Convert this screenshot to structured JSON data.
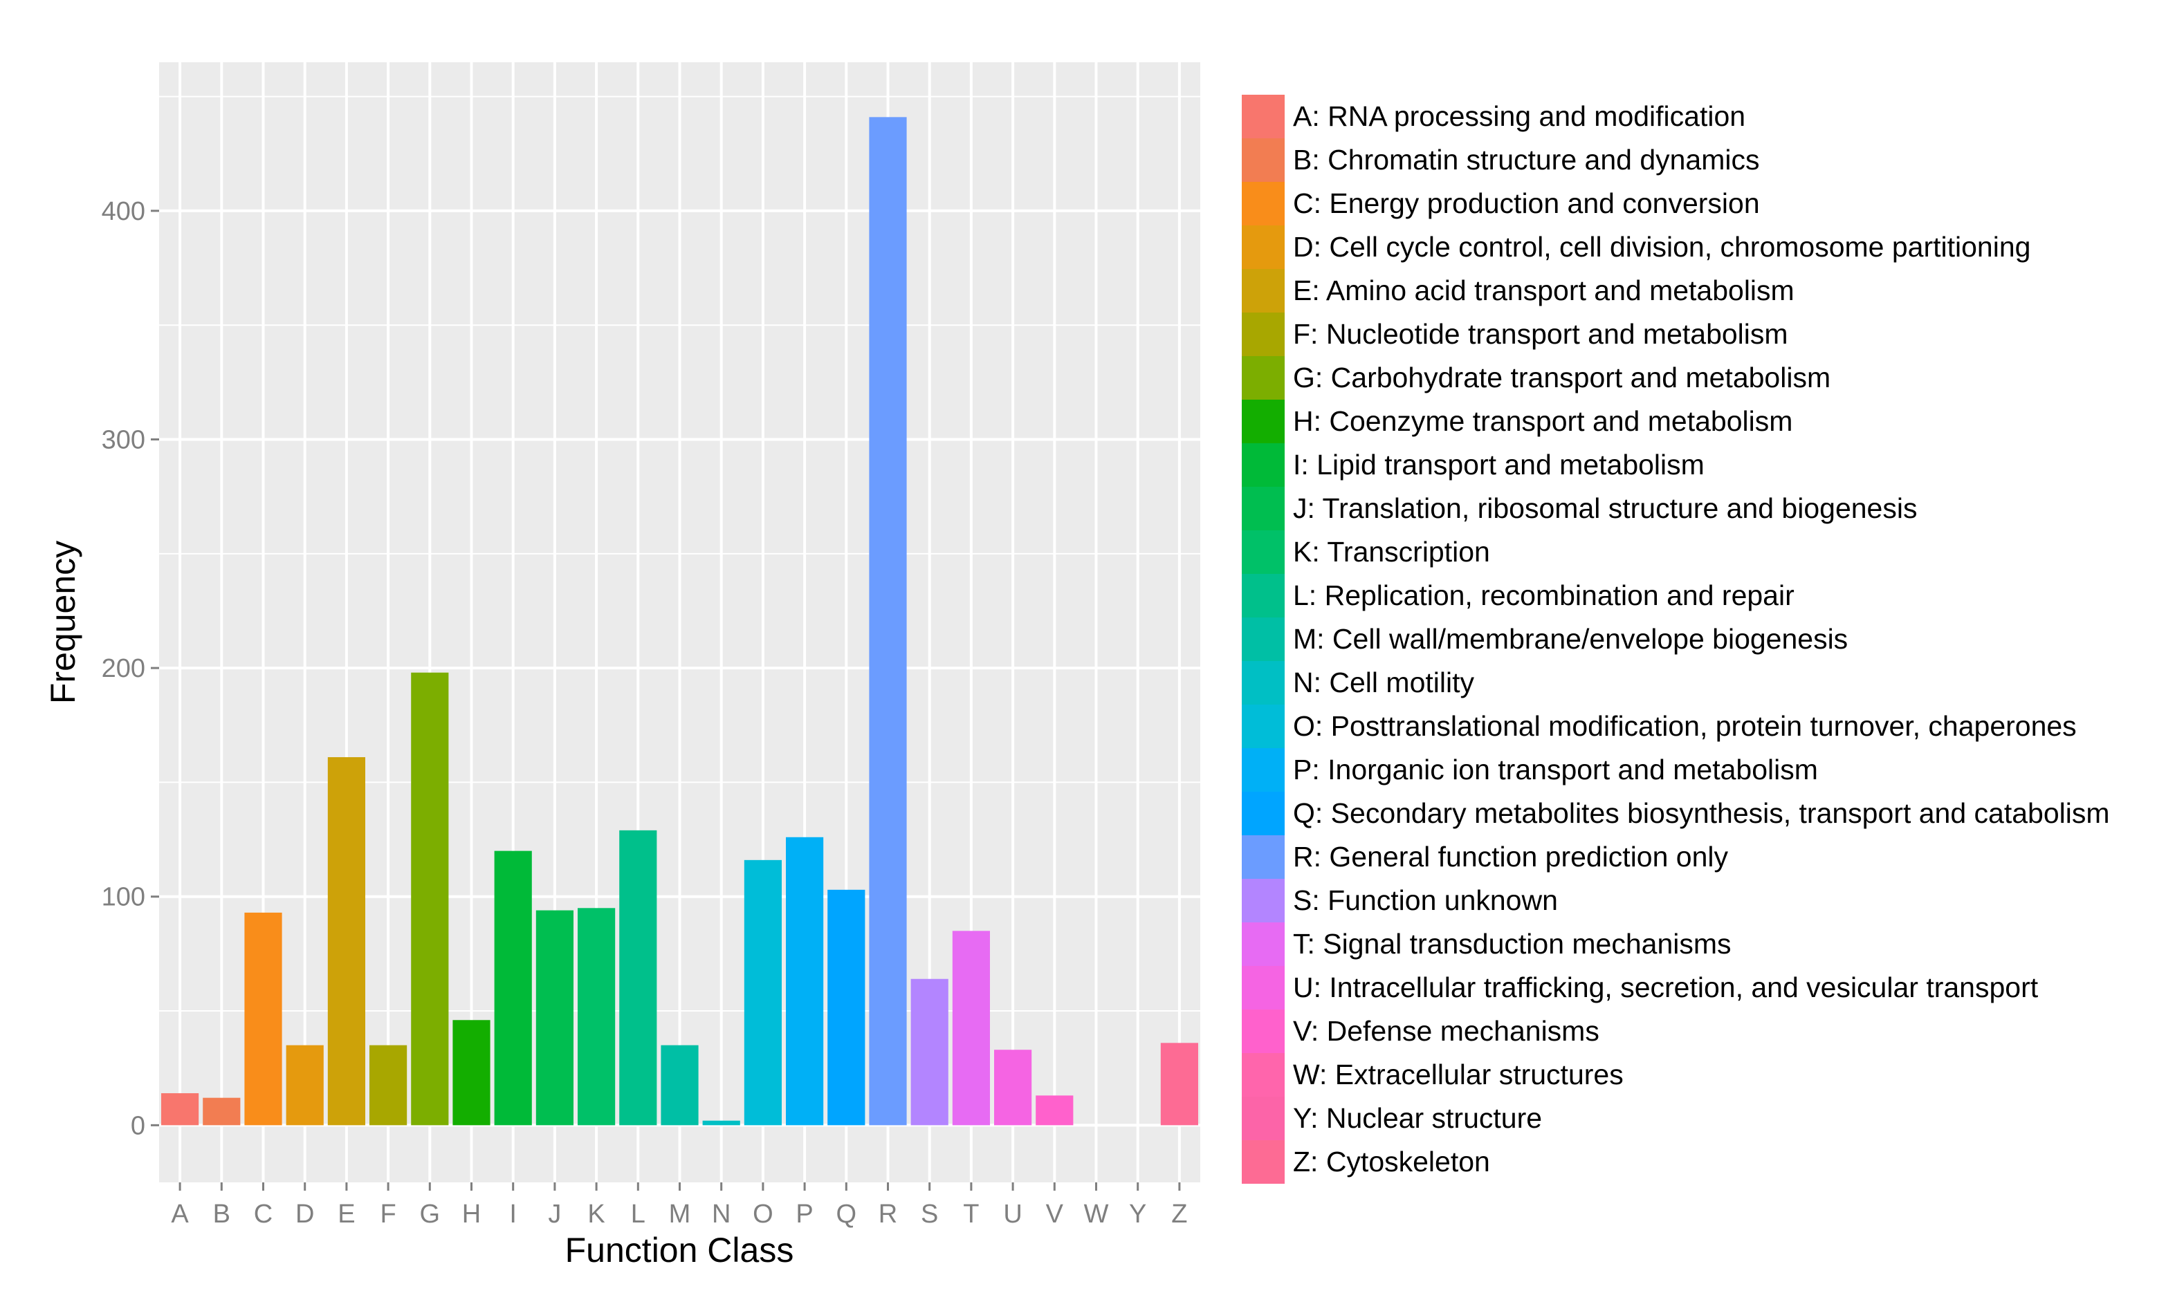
{
  "chart_data": {
    "type": "bar",
    "xlabel": "Function Class",
    "ylabel": "Frequency",
    "ylim": [
      -25,
      465
    ],
    "yticks": [
      0,
      100,
      200,
      300,
      400
    ],
    "grid": true,
    "legend_position": "right",
    "categories": [
      "A",
      "B",
      "C",
      "D",
      "E",
      "F",
      "G",
      "H",
      "I",
      "J",
      "K",
      "L",
      "M",
      "N",
      "O",
      "P",
      "Q",
      "R",
      "S",
      "T",
      "U",
      "V",
      "W",
      "Y",
      "Z"
    ],
    "values": [
      14,
      12,
      93,
      35,
      161,
      35,
      198,
      46,
      120,
      94,
      95,
      129,
      35,
      2,
      116,
      126,
      103,
      441,
      64,
      85,
      33,
      13,
      0,
      0,
      36
    ],
    "colors": [
      "#F8766D",
      "#F27D52",
      "#F98D1A",
      "#E59A0E",
      "#CDA209",
      "#A8A700",
      "#7CAE00",
      "#13AE00",
      "#00BA38",
      "#00BE50",
      "#00C168",
      "#00C08B",
      "#00BFA5",
      "#00BFC4",
      "#00BDD8",
      "#00B0F6",
      "#00A5FF",
      "#6B9CFF",
      "#B385FF",
      "#E76BF3",
      "#F564E3",
      "#FF61CC",
      "#FF65AC",
      "#FC64A8",
      "#FD6B94"
    ],
    "legend": [
      "A: RNA processing and modification",
      "B: Chromatin structure and dynamics",
      "C: Energy production and conversion",
      "D: Cell cycle control, cell division, chromosome partitioning",
      "E: Amino acid transport and metabolism",
      "F: Nucleotide transport and metabolism",
      "G: Carbohydrate transport and metabolism",
      "H: Coenzyme transport and metabolism",
      "I: Lipid transport and metabolism",
      "J: Translation, ribosomal structure and biogenesis",
      "K: Transcription",
      "L: Replication, recombination and repair",
      "M: Cell wall/membrane/envelope biogenesis",
      "N: Cell motility",
      "O: Posttranslational modification, protein turnover, chaperones",
      "P: Inorganic ion transport and metabolism",
      "Q: Secondary metabolites biosynthesis, transport and catabolism",
      "R: General function prediction only",
      "S: Function unknown",
      "T: Signal transduction mechanisms",
      "U: Intracellular trafficking, secretion, and vesicular transport",
      "V: Defense mechanisms",
      "W: Extracellular structures",
      "Y: Nuclear structure",
      "Z: Cytoskeleton"
    ],
    "panel_background": "#EBEBEB",
    "gridline_color": "#FFFFFF"
  }
}
